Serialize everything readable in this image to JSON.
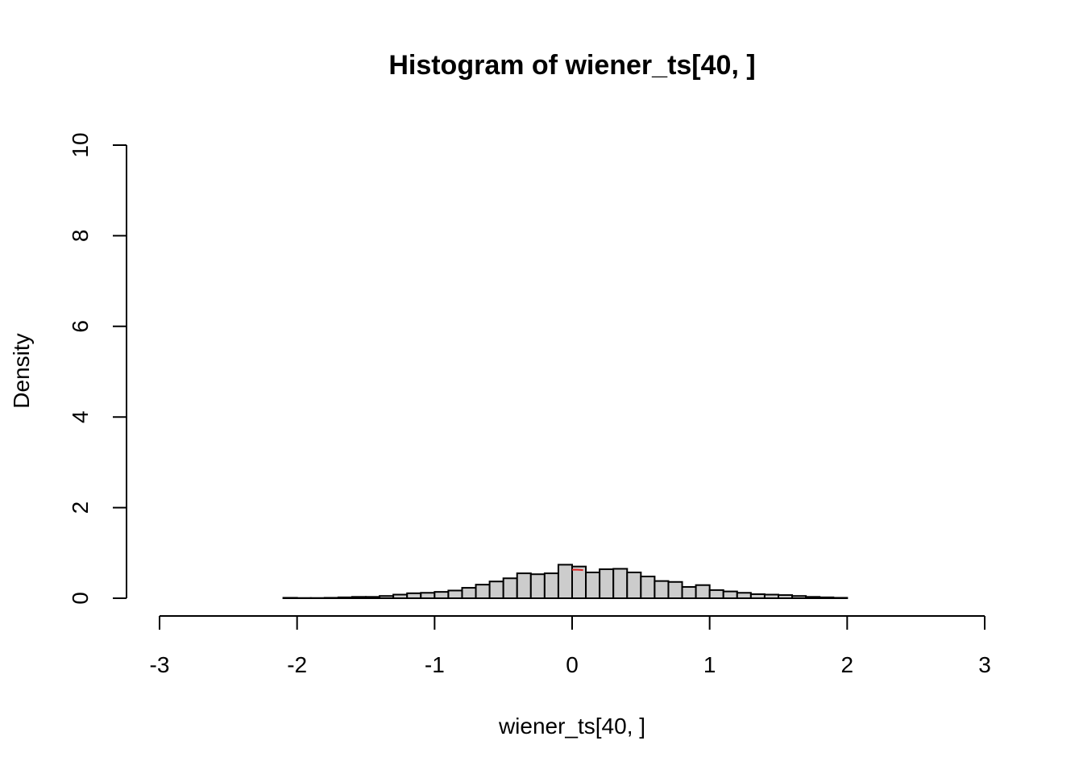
{
  "chart_data": {
    "type": "bar",
    "title": "Histogram of wiener_ts[40, ]",
    "xlabel": "wiener_ts[40, ]",
    "ylabel": "Density",
    "xlim": [
      -3,
      3
    ],
    "ylim": [
      0,
      10
    ],
    "x_ticks": [
      "-3",
      "-2",
      "-1",
      "0",
      "1",
      "2",
      "3"
    ],
    "y_ticks": [
      "0",
      "2",
      "4",
      "6",
      "8",
      "10"
    ],
    "bin_width": 0.1,
    "bin_start": -2.1,
    "values": [
      0.01,
      0.005,
      0.005,
      0.01,
      0.02,
      0.03,
      0.03,
      0.05,
      0.08,
      0.11,
      0.12,
      0.14,
      0.17,
      0.23,
      0.3,
      0.37,
      0.44,
      0.55,
      0.53,
      0.55,
      0.74,
      0.7,
      0.57,
      0.64,
      0.65,
      0.57,
      0.48,
      0.38,
      0.36,
      0.25,
      0.29,
      0.18,
      0.15,
      0.12,
      0.09,
      0.08,
      0.07,
      0.05,
      0.03,
      0.02,
      0.01
    ],
    "density_curve": {
      "color": "#dd2222",
      "x": [
        0.0,
        0.04,
        0.08
      ],
      "y": [
        0.63,
        0.63,
        0.62
      ]
    },
    "grid": false,
    "legend": "none",
    "colors": {
      "bar_fill": "#cccccc",
      "bar_stroke": "#000000"
    }
  }
}
